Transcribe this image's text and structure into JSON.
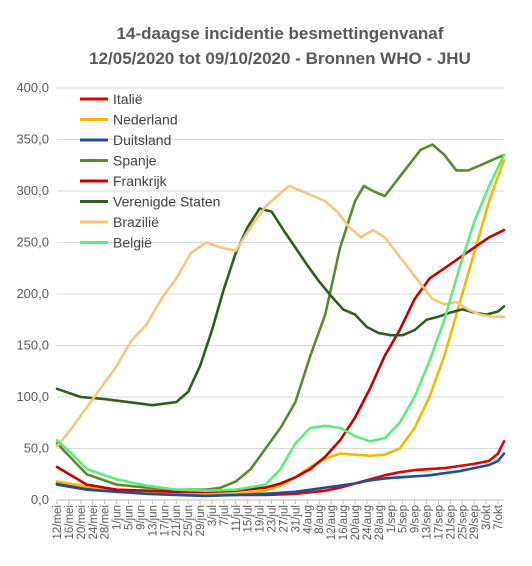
{
  "chart_data": {
    "type": "line",
    "title_lines": [
      "14-daagse incidentie besmettingenvanaf",
      "12/05/2020 tot 09/10/2020 - Bronnen WHO - JHU"
    ],
    "xlabel": "",
    "ylabel": "",
    "ylim": [
      0,
      400
    ],
    "y_ticks": [
      "0,0",
      "50,0",
      "100,0",
      "150,0",
      "200,0",
      "250,0",
      "300,0",
      "350,0",
      "400,0"
    ],
    "x_ticks": [
      "12/mei",
      "16/mei",
      "20/mei",
      "24/mei",
      "28/mei",
      "1/jun",
      "5/jun",
      "9/jun",
      "13/jun",
      "17/jun",
      "21/jun",
      "25/jun",
      "29/jun",
      "3/jul",
      "7/jul",
      "11/jul",
      "15/jul",
      "19/jul",
      "23/jul",
      "27/jul",
      "31/jul",
      "4/aug",
      "8/aug",
      "12/aug",
      "16/aug",
      "20/aug",
      "24/aug",
      "28/aug",
      "1/sep",
      "5/sep",
      "9/sep",
      "13/sep",
      "17/sep",
      "21/sep",
      "25/sep",
      "29/sep",
      "3/okt",
      "7/okt"
    ],
    "x_domain_days": [
      0,
      150
    ],
    "grid": true,
    "legend_position": "top-left",
    "series": [
      {
        "name": "Italië",
        "color": "#e00000",
        "x": [
          0,
          10,
          20,
          30,
          40,
          50,
          60,
          70,
          80,
          90,
          95,
          100,
          105,
          110,
          115,
          120,
          125,
          130,
          135,
          140,
          145,
          148,
          150
        ],
        "y": [
          16,
          12,
          9,
          7,
          6,
          5,
          5,
          5,
          6,
          9,
          12,
          16,
          20,
          24,
          27,
          29,
          30,
          31,
          33,
          35,
          38,
          45,
          57
        ]
      },
      {
        "name": "Nederland",
        "color": "#f5b800",
        "x": [
          0,
          10,
          20,
          30,
          40,
          50,
          60,
          70,
          75,
          80,
          85,
          90,
          95,
          100,
          105,
          110,
          115,
          120,
          125,
          130,
          135,
          140,
          145,
          150
        ],
        "y": [
          18,
          13,
          10,
          8,
          7,
          6,
          6,
          9,
          14,
          22,
          32,
          40,
          45,
          44,
          43,
          44,
          50,
          70,
          100,
          140,
          190,
          240,
          290,
          330
        ]
      },
      {
        "name": "Duitsland",
        "color": "#1f4e9a",
        "x": [
          0,
          10,
          20,
          30,
          40,
          50,
          60,
          70,
          80,
          90,
          100,
          105,
          110,
          115,
          120,
          125,
          130,
          135,
          140,
          145,
          148,
          150
        ],
        "y": [
          15,
          10,
          8,
          6,
          5,
          4,
          5,
          6,
          8,
          12,
          16,
          19,
          21,
          22,
          23,
          24,
          26,
          28,
          31,
          34,
          38,
          45
        ]
      },
      {
        "name": "Spanje",
        "color": "#5a8a2e",
        "x": [
          0,
          10,
          20,
          30,
          40,
          50,
          55,
          60,
          65,
          70,
          75,
          80,
          85,
          90,
          95,
          100,
          103,
          106,
          110,
          114,
          118,
          122,
          126,
          130,
          134,
          138,
          142,
          146,
          150
        ],
        "y": [
          55,
          25,
          15,
          12,
          10,
          10,
          12,
          18,
          30,
          50,
          70,
          95,
          140,
          180,
          245,
          290,
          305,
          300,
          295,
          310,
          325,
          340,
          345,
          335,
          320,
          320,
          325,
          330,
          335
        ]
      },
      {
        "name": "Frankrijk",
        "color": "#c00000",
        "x": [
          0,
          10,
          20,
          30,
          40,
          50,
          60,
          70,
          75,
          80,
          85,
          90,
          95,
          100,
          105,
          110,
          115,
          120,
          125,
          130,
          135,
          140,
          145,
          150
        ],
        "y": [
          32,
          15,
          10,
          9,
          8,
          8,
          9,
          12,
          16,
          22,
          30,
          42,
          58,
          80,
          108,
          140,
          165,
          195,
          215,
          225,
          235,
          245,
          255,
          262
        ]
      },
      {
        "name": "Verenigde Staten",
        "color": "#2e5e1e",
        "x": [
          0,
          8,
          16,
          24,
          32,
          40,
          44,
          48,
          52,
          56,
          60,
          64,
          68,
          72,
          76,
          80,
          84,
          88,
          92,
          96,
          100,
          104,
          108,
          112,
          116,
          120,
          124,
          128,
          132,
          136,
          140,
          144,
          148,
          150
        ],
        "y": [
          108,
          100,
          98,
          95,
          92,
          95,
          105,
          130,
          165,
          205,
          240,
          265,
          283,
          280,
          262,
          245,
          228,
          212,
          198,
          185,
          180,
          168,
          162,
          160,
          160,
          165,
          175,
          178,
          182,
          185,
          182,
          180,
          183,
          188
        ]
      },
      {
        "name": "Brazilië",
        "color": "#f6c77a",
        "x": [
          0,
          5,
          10,
          15,
          20,
          25,
          30,
          35,
          40,
          45,
          50,
          55,
          60,
          65,
          70,
          75,
          78,
          82,
          86,
          90,
          94,
          98,
          102,
          106,
          110,
          114,
          118,
          122,
          126,
          130,
          134,
          138,
          142,
          146,
          150
        ],
        "y": [
          52,
          70,
          90,
          110,
          130,
          155,
          170,
          195,
          215,
          240,
          250,
          245,
          242,
          265,
          285,
          298,
          305,
          300,
          295,
          290,
          280,
          265,
          255,
          262,
          255,
          240,
          225,
          210,
          195,
          190,
          192,
          185,
          180,
          178,
          178
        ]
      },
      {
        "name": "België",
        "color": "#5bec7c",
        "x": [
          0,
          5,
          10,
          20,
          30,
          40,
          50,
          60,
          70,
          75,
          80,
          85,
          90,
          95,
          100,
          105,
          110,
          115,
          120,
          125,
          130,
          135,
          140,
          145,
          150
        ],
        "y": [
          58,
          45,
          30,
          20,
          14,
          10,
          9,
          10,
          15,
          30,
          55,
          70,
          72,
          70,
          62,
          57,
          60,
          75,
          100,
          135,
          175,
          225,
          270,
          305,
          335
        ]
      }
    ]
  }
}
